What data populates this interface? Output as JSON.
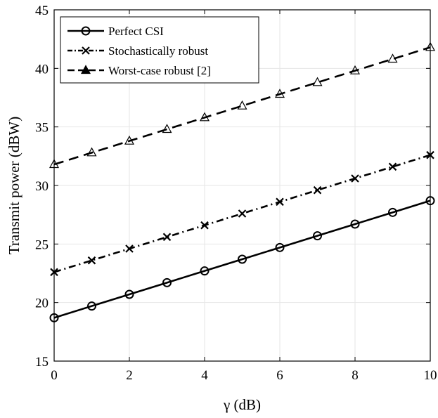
{
  "chart_data": {
    "type": "line",
    "xlabel": "γ (dB)",
    "ylabel": "Transmit power (dBW)",
    "xlim": [
      0,
      10
    ],
    "ylim": [
      15,
      45
    ],
    "xticks": [
      0,
      2,
      4,
      6,
      8,
      10
    ],
    "yticks": [
      15,
      20,
      25,
      30,
      35,
      40,
      45
    ],
    "grid": true,
    "legend_position": "top-left",
    "x": [
      0,
      1,
      2,
      3,
      4,
      5,
      6,
      7,
      8,
      9,
      10
    ],
    "series": [
      {
        "name": "Perfect CSI",
        "line_style": "solid",
        "marker": "circle",
        "color": "#000000",
        "values": [
          18.7,
          19.7,
          20.7,
          21.7,
          22.7,
          23.7,
          24.7,
          25.7,
          26.7,
          27.7,
          28.7
        ]
      },
      {
        "name": "Stochastically robust",
        "line_style": "dash-dot",
        "marker": "x",
        "color": "#000000",
        "values": [
          22.6,
          23.6,
          24.6,
          25.6,
          26.6,
          27.6,
          28.6,
          29.6,
          30.6,
          31.6,
          32.6
        ]
      },
      {
        "name": "Worst-case robust [2]",
        "line_style": "dashed",
        "marker": "triangle",
        "color": "#000000",
        "values": [
          31.8,
          32.8,
          33.8,
          34.8,
          35.8,
          36.8,
          37.8,
          38.8,
          39.8,
          40.8,
          41.8
        ]
      }
    ]
  }
}
